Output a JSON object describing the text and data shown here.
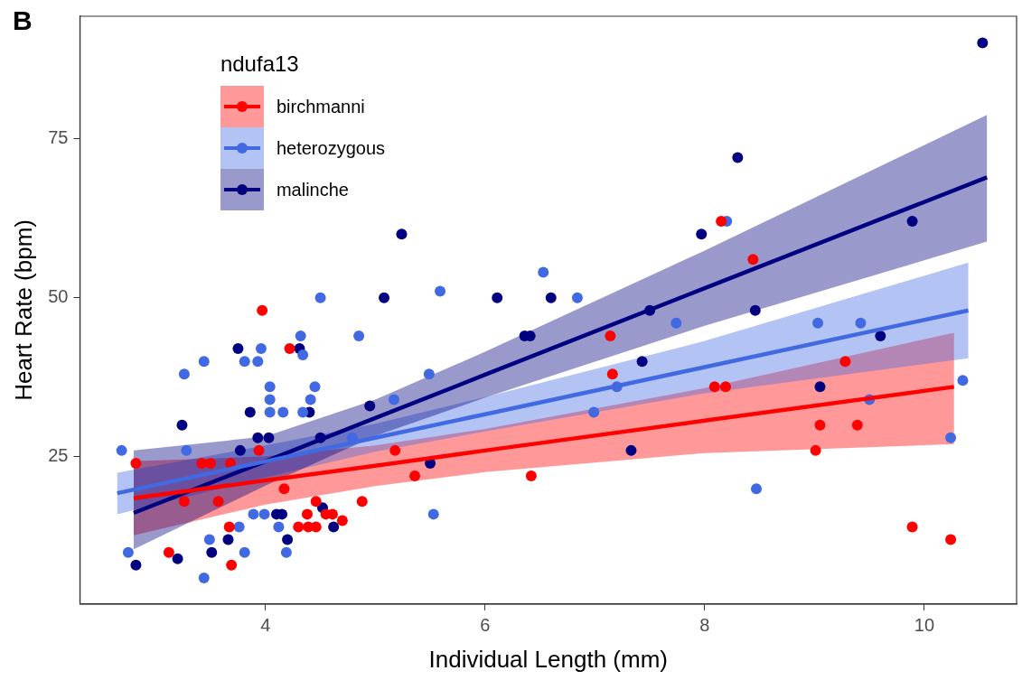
{
  "chart_data": {
    "type": "scatter",
    "title": "B",
    "xlabel": "Individual Length (mm)",
    "ylabel": "Heart Rate (bpm)",
    "legend_title": "ndufa13",
    "legend": "top left",
    "grid": false,
    "marker": "circle",
    "xlim": [
      2.31,
      10.84
    ],
    "xticks": [
      4,
      6,
      8,
      10
    ],
    "ylim": [
      1.9,
      94.2
    ],
    "yticks": [
      25,
      50,
      75
    ],
    "series": [
      {
        "name": "birchmanni",
        "color": "#ff0000",
        "x": [
          2.82,
          3.12,
          3.97,
          4.22,
          3.69,
          3.67,
          4.17,
          3.57,
          3.26,
          4.46,
          4.38,
          4.3,
          4.39,
          4.46,
          4.55,
          4.61,
          4.7,
          4.88,
          5.36,
          6.42,
          8.15,
          8.44,
          7.14,
          7.16,
          8.09,
          8.19,
          9.28,
          9.05,
          9.39,
          9.01,
          9.89,
          10.24,
          3.42,
          3.5,
          3.68,
          3.94,
          5.18
        ],
        "values": [
          24,
          10,
          48,
          42,
          8,
          14,
          20,
          18,
          18,
          18,
          16,
          14,
          14,
          14,
          16,
          16,
          15,
          18,
          22,
          22,
          62,
          56,
          44,
          38,
          36,
          36,
          40,
          30,
          30,
          26,
          14,
          12,
          24,
          24,
          24,
          26,
          26
        ]
      },
      {
        "name": "heterozygous",
        "color": "#4169e1",
        "x": [
          2.69,
          2.75,
          3.26,
          3.44,
          3.28,
          3.44,
          3.49,
          3.81,
          3.93,
          3.96,
          4.04,
          4.04,
          4.16,
          4.04,
          4.32,
          4.34,
          4.5,
          4.85,
          4.41,
          4.45,
          4.19,
          4.12,
          3.81,
          3.76,
          3.89,
          3.99,
          4.34,
          5.53,
          5.59,
          5.49,
          5.17,
          6.53,
          6.84,
          7.2,
          7.74,
          8.2,
          8.47,
          9.03,
          9.42,
          10.35,
          10.24,
          9.5,
          6.99,
          4.79
        ],
        "values": [
          26,
          10,
          38,
          40,
          26,
          6,
          12,
          40,
          40,
          42,
          36,
          32,
          32,
          34,
          44,
          41,
          50,
          44,
          34,
          36,
          10,
          14,
          10,
          14,
          16,
          16,
          32,
          16,
          51,
          38,
          34,
          54,
          50,
          36,
          46,
          62,
          20,
          46,
          46,
          37,
          28,
          34,
          32,
          28
        ]
      },
      {
        "name": "malinche",
        "color": "#000080",
        "x": [
          2.82,
          3.2,
          3.51,
          3.24,
          3.86,
          3.75,
          4.31,
          3.93,
          4.03,
          3.77,
          3.66,
          4.2,
          4.1,
          4.15,
          4.52,
          4.62,
          4.5,
          4.4,
          5.24,
          5.08,
          6.11,
          6.6,
          6.36,
          6.41,
          4.95,
          7.97,
          8.3,
          7.5,
          8.46,
          7.43,
          9.89,
          10.53,
          9.6,
          9.05,
          7.33,
          5.5
        ],
        "values": [
          8,
          9,
          10,
          30,
          32,
          42,
          42,
          28,
          28,
          26,
          12,
          12,
          16,
          16,
          17,
          14,
          28,
          32,
          60,
          50,
          50,
          50,
          44,
          44,
          33,
          60,
          72,
          48,
          48,
          40,
          62,
          90,
          44,
          36,
          26,
          24
        ]
      },
      {
        "type": "line",
        "marker": "none",
        "color": "#ff0000",
        "x": [
          2.8,
          4,
          5,
          6,
          8,
          10.27
        ],
        "values": [
          18.5,
          21.3,
          23.6,
          26,
          30.7,
          36
        ],
        "lower": [
          12.7,
          17.5,
          20.4,
          22.6,
          25.6,
          27
        ],
        "upper": [
          24.3,
          25.1,
          26.8,
          29.4,
          35.8,
          44.5
        ]
      },
      {
        "type": "line",
        "marker": "none",
        "color": "#4169e1",
        "x": [
          2.65,
          4,
          5,
          6,
          8,
          10.4
        ],
        "values": [
          19.3,
          24.3,
          28,
          31.7,
          39.1,
          48
        ],
        "lower": [
          16,
          21.8,
          25.8,
          29,
          35,
          40.5
        ],
        "upper": [
          22.5,
          26.8,
          30.2,
          34.4,
          43.2,
          55.5
        ]
      },
      {
        "type": "line",
        "marker": "none",
        "color": "#000080",
        "x": [
          2.8,
          4,
          5,
          6,
          8,
          10.57
        ],
        "values": [
          16.2,
          24.3,
          31.1,
          37.9,
          51.5,
          68.9
        ],
        "lower": [
          10.5,
          20.5,
          28.3,
          34.3,
          45.6,
          58.8
        ],
        "upper": [
          26,
          28.2,
          34,
          41.5,
          57.4,
          78.7
        ]
      }
    ]
  }
}
